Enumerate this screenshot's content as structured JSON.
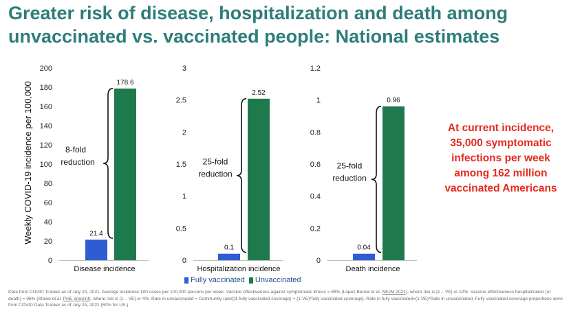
{
  "title": {
    "line1": "Greater risk of disease, hospitalization and death among",
    "line2": "unvaccinated vs. vaccinated people: National estimates"
  },
  "callout": {
    "line1": "At current incidence,",
    "line2": "35,000 symptomatic",
    "line3": "infections per week",
    "line4": "among 162 million",
    "line5": "vaccinated Americans"
  },
  "colors": {
    "title": "#2e7d7a",
    "fully_vaccinated": "#2f5cd3",
    "unvaccinated": "#1e7a4c",
    "callout": "#e32b1f"
  },
  "legend": {
    "fully_vaccinated": "Fully vaccinated",
    "unvaccinated": "Unvaccinated"
  },
  "footnote": {
    "part1": "Data from COVID Tracker as of July 24, 2021. Average incidence 100 cases per 100,000 persons per week. Vaccine effectiveness against symptomatic illness = 88% (Lopez Bernal et al. ",
    "link1": "NEJM 2021",
    "part2": "), where risk is [1 – VE] or 12%. Vaccine effectiveness hospitalization (or death) = 96% (Stowe et al. ",
    "link2": "PHE preprint",
    "part3": "), where risk is [1 – VE] or 4%.  Rate in unvaccinated = Community rate/[(1-fully vaccinated coverage) + (1-VE)*fully vaccinated coverage]. Rate in fully vaccinated=(1-VE)*Rate in unvaccinated. Fully vaccinated coverage proportions were from COVID Data Tracker as of July 24, 2021 (50% for US,)."
  },
  "chart_data": [
    {
      "type": "bar",
      "ylabel": "Weekly COVID-19 incidence per 100,000",
      "xlabel": "Disease incidence",
      "ylim": [
        0,
        200
      ],
      "yticks": [
        0,
        20,
        40,
        60,
        80,
        100,
        120,
        140,
        160,
        180,
        200
      ],
      "series": [
        {
          "name": "Fully vaccinated",
          "values": [
            21.4
          ],
          "labels": [
            "21.4"
          ]
        },
        {
          "name": "Unvaccinated",
          "values": [
            178.6
          ],
          "labels": [
            "178.6"
          ]
        }
      ],
      "annotation": {
        "line1": "8-fold",
        "line2": "reduction"
      }
    },
    {
      "type": "bar",
      "ylabel": "",
      "xlabel": "Hospitalization incidence",
      "ylim": [
        0,
        3
      ],
      "yticks": [
        0,
        0.5,
        1,
        1.5,
        2,
        2.5,
        3
      ],
      "series": [
        {
          "name": "Fully vaccinated",
          "values": [
            0.1
          ],
          "labels": [
            "0.1"
          ]
        },
        {
          "name": "Unvaccinated",
          "values": [
            2.52
          ],
          "labels": [
            "2.52"
          ]
        }
      ],
      "annotation": {
        "line1": "25-fold",
        "line2": "reduction"
      }
    },
    {
      "type": "bar",
      "ylabel": "",
      "xlabel": "Death incidence",
      "ylim": [
        0,
        1.2
      ],
      "yticks": [
        0,
        0.2,
        0.4,
        0.6,
        0.8,
        1,
        1.2
      ],
      "series": [
        {
          "name": "Fully vaccinated",
          "values": [
            0.04
          ],
          "labels": [
            "0.04"
          ]
        },
        {
          "name": "Unvaccinated",
          "values": [
            0.96
          ],
          "labels": [
            "0.96"
          ]
        }
      ],
      "annotation": {
        "line1": "25-fold",
        "line2": "reduction"
      }
    }
  ]
}
